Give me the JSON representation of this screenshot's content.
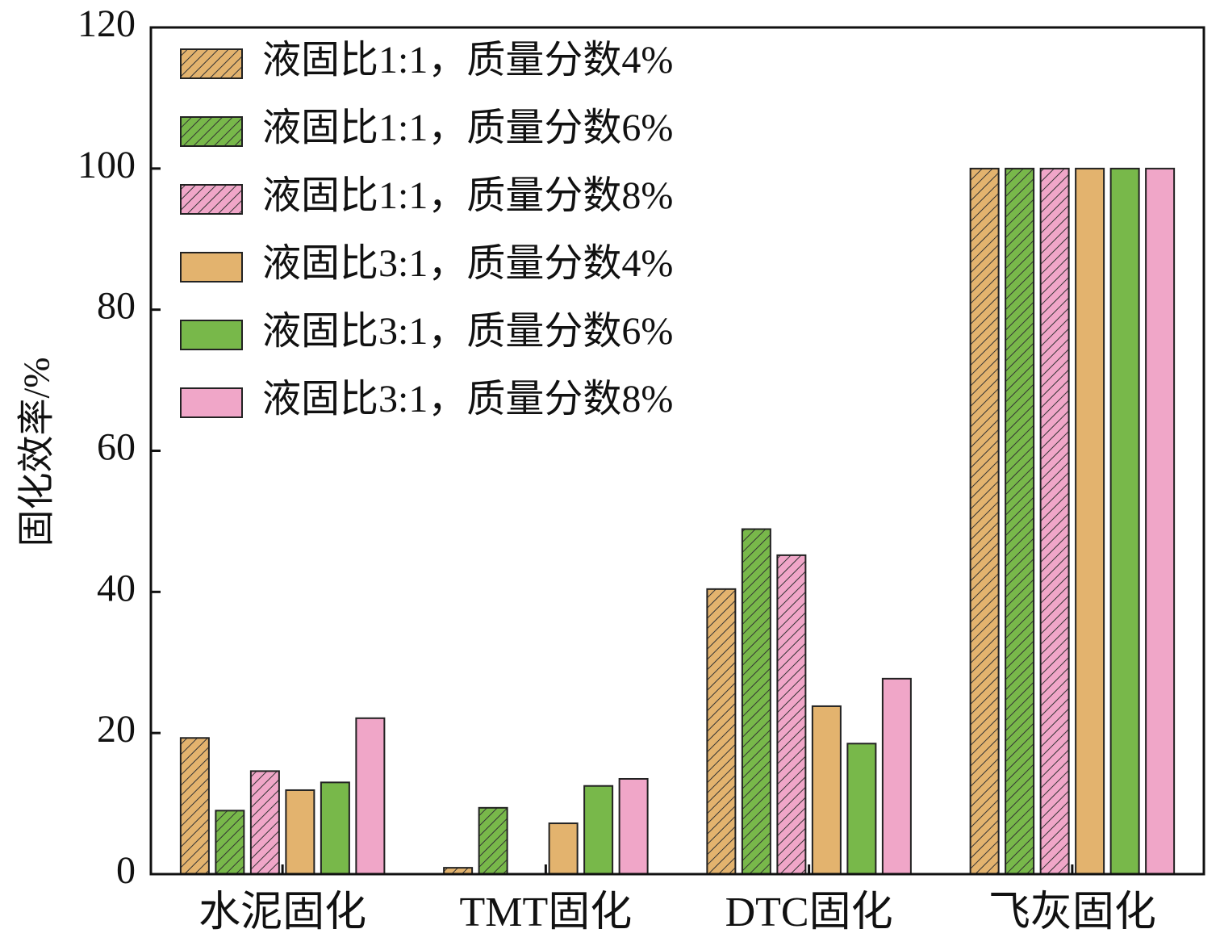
{
  "chart_data": {
    "type": "bar",
    "y_label": "固化效率/%",
    "categories": [
      "水泥固化",
      "TMT固化",
      "DTC固化",
      "飞灰固化"
    ],
    "series": [
      {
        "name": "液固比1:1，质量分数4%",
        "color": "#e3b36e",
        "hatch": true,
        "values": [
          19.3,
          0.9,
          40.4,
          100
        ]
      },
      {
        "name": "液固比1:1，质量分数6%",
        "color": "#78b84a",
        "hatch": true,
        "values": [
          9.0,
          9.4,
          48.9,
          100
        ]
      },
      {
        "name": "液固比1:1，质量分数8%",
        "color": "#f0a6c8",
        "hatch": true,
        "values": [
          14.6,
          0,
          45.2,
          100
        ]
      },
      {
        "name": "液固比3:1，质量分数4%",
        "color": "#e3b36e",
        "hatch": false,
        "values": [
          11.9,
          7.2,
          23.8,
          100
        ]
      },
      {
        "name": "液固比3:1，质量分数6%",
        "color": "#78b84a",
        "hatch": false,
        "values": [
          13.0,
          12.5,
          18.5,
          100
        ]
      },
      {
        "name": "液固比3:1，质量分数8%",
        "color": "#f0a6c8",
        "hatch": false,
        "values": [
          22.1,
          13.5,
          27.7,
          100
        ]
      }
    ],
    "ylim": [
      0,
      120
    ],
    "yticks": [
      0,
      20,
      40,
      60,
      80,
      100,
      120
    ],
    "legend": "upper-left"
  }
}
